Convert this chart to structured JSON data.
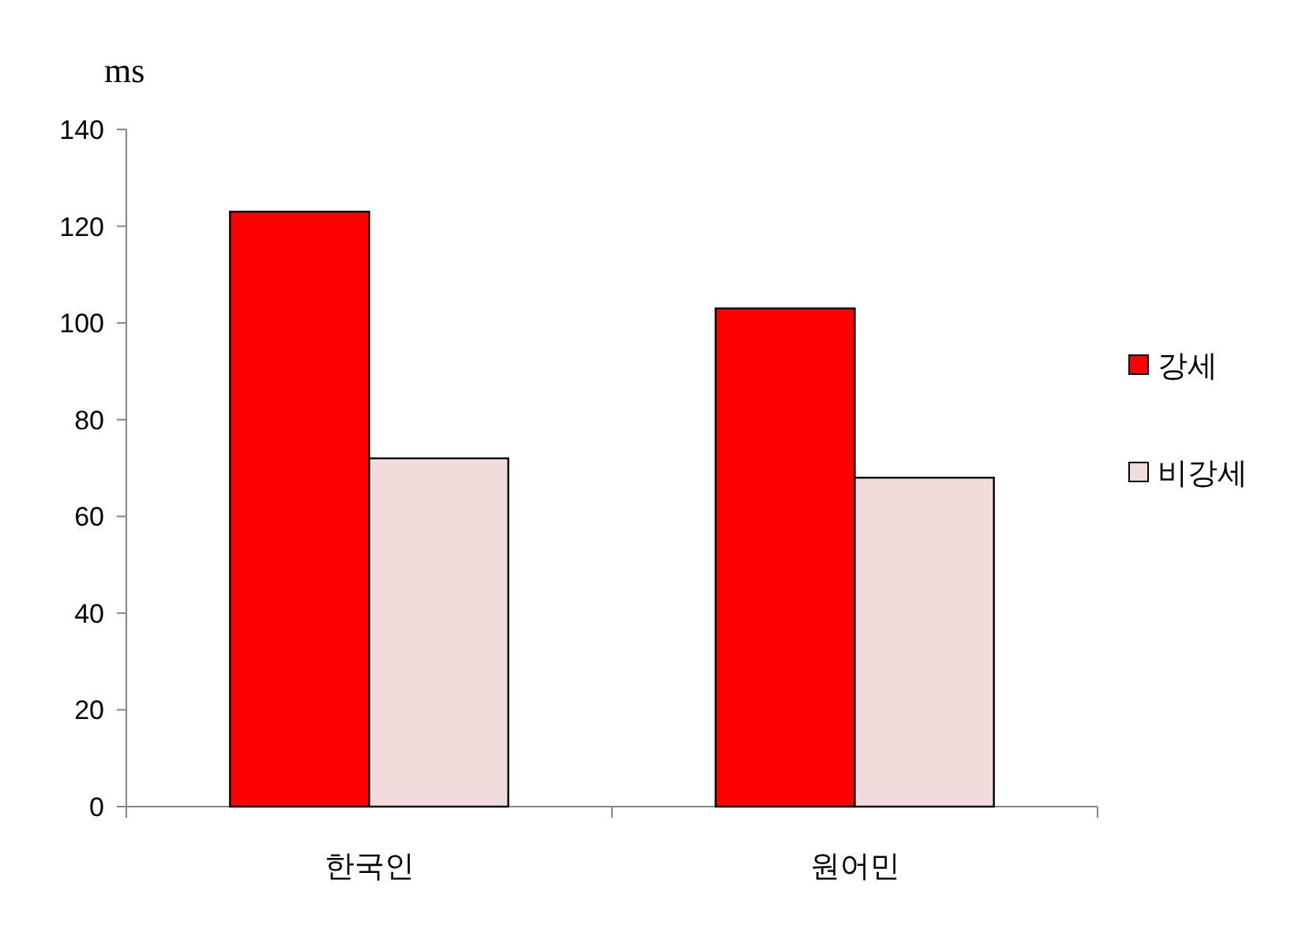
{
  "chart_data": {
    "type": "bar",
    "ylabel": "ms",
    "categories": [
      "한국인",
      "원어민"
    ],
    "series": [
      {
        "name": "강세",
        "color": "#ff0000",
        "values": [
          123,
          103
        ]
      },
      {
        "name": "비강세",
        "color": "#f2dcdb",
        "values": [
          72,
          68
        ]
      }
    ],
    "ylim": [
      0,
      140
    ],
    "yticks": [
      0,
      20,
      40,
      60,
      80,
      100,
      120,
      140
    ],
    "legend": "right"
  }
}
